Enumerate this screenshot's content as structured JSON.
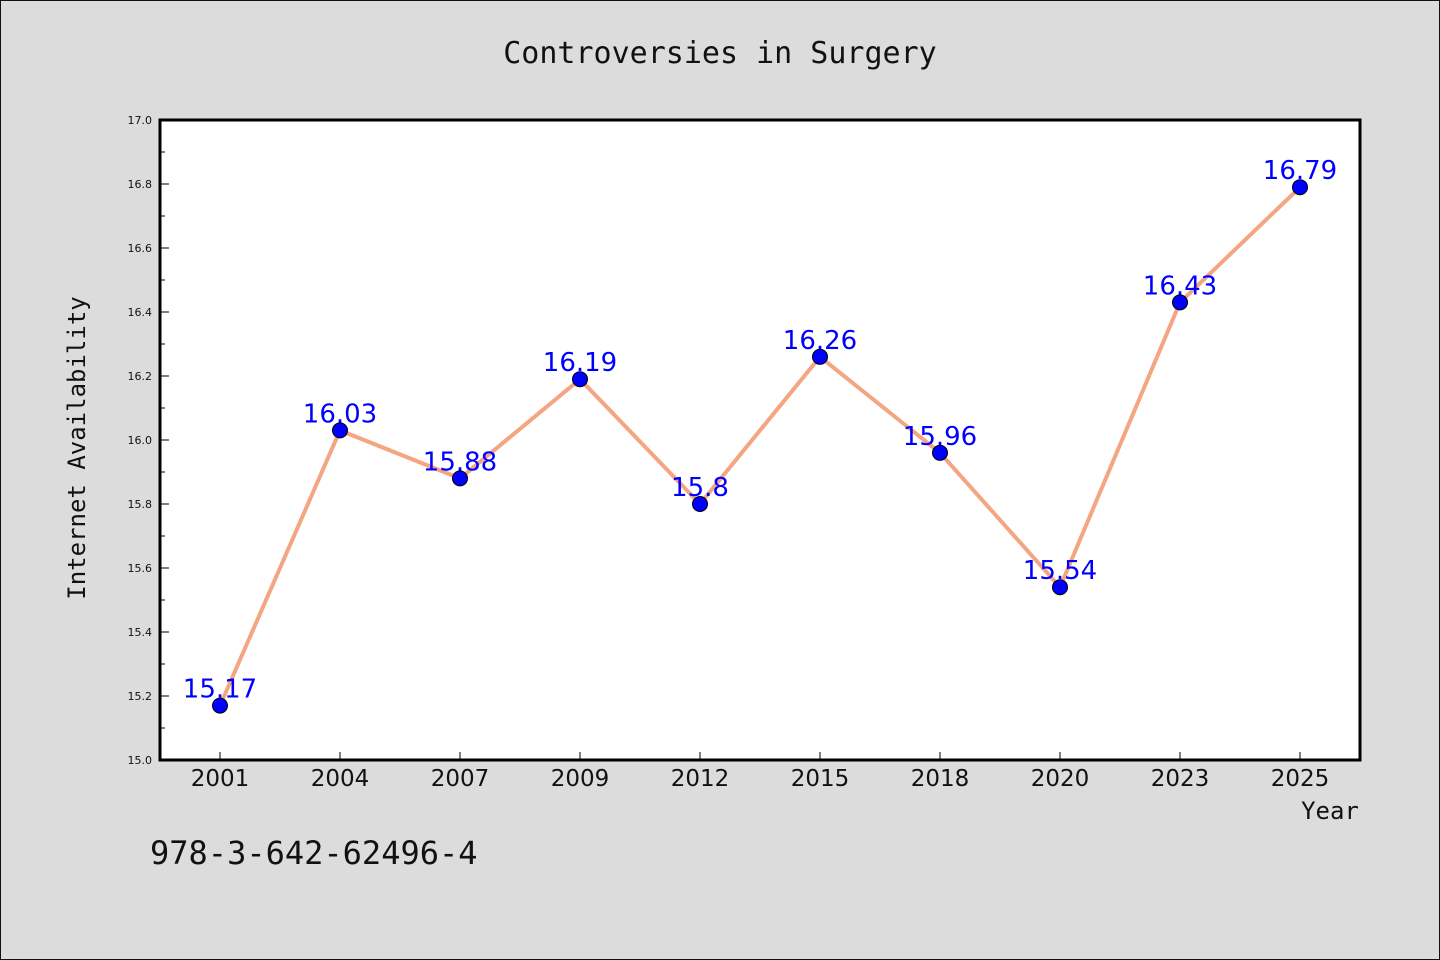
{
  "chart_data": {
    "type": "line",
    "title": "Controversies in Surgery",
    "xlabel": "Year",
    "ylabel": "Internet Availability",
    "categories": [
      "2001",
      "2004",
      "2007",
      "2009",
      "2012",
      "2015",
      "2018",
      "2020",
      "2023",
      "2025"
    ],
    "series": [
      {
        "values": [
          15.17,
          16.03,
          15.88,
          16.19,
          15.8,
          16.26,
          15.96,
          15.54,
          16.43,
          16.79
        ],
        "line_color": "#f4a582",
        "marker_color": "#0000ff"
      }
    ],
    "data_labels": [
      "15.17",
      "16.03",
      "15.88",
      "16.19",
      "15.8",
      "16.26",
      "15.96",
      "15.54",
      "16.43",
      "16.79"
    ],
    "ylim": [
      15.0,
      17.0
    ],
    "yticks": [
      "15.0",
      "15.2",
      "15.4",
      "15.6",
      "15.8",
      "16.0",
      "16.2",
      "16.4",
      "16.6",
      "16.8",
      "17.0"
    ],
    "grid": false,
    "legend": "none"
  },
  "footer": {
    "isbn": "978-3-642-62496-4"
  },
  "colors": {
    "background": "#dcdcdc",
    "plot_background": "#ffffff",
    "label_color": "#0000ff"
  }
}
